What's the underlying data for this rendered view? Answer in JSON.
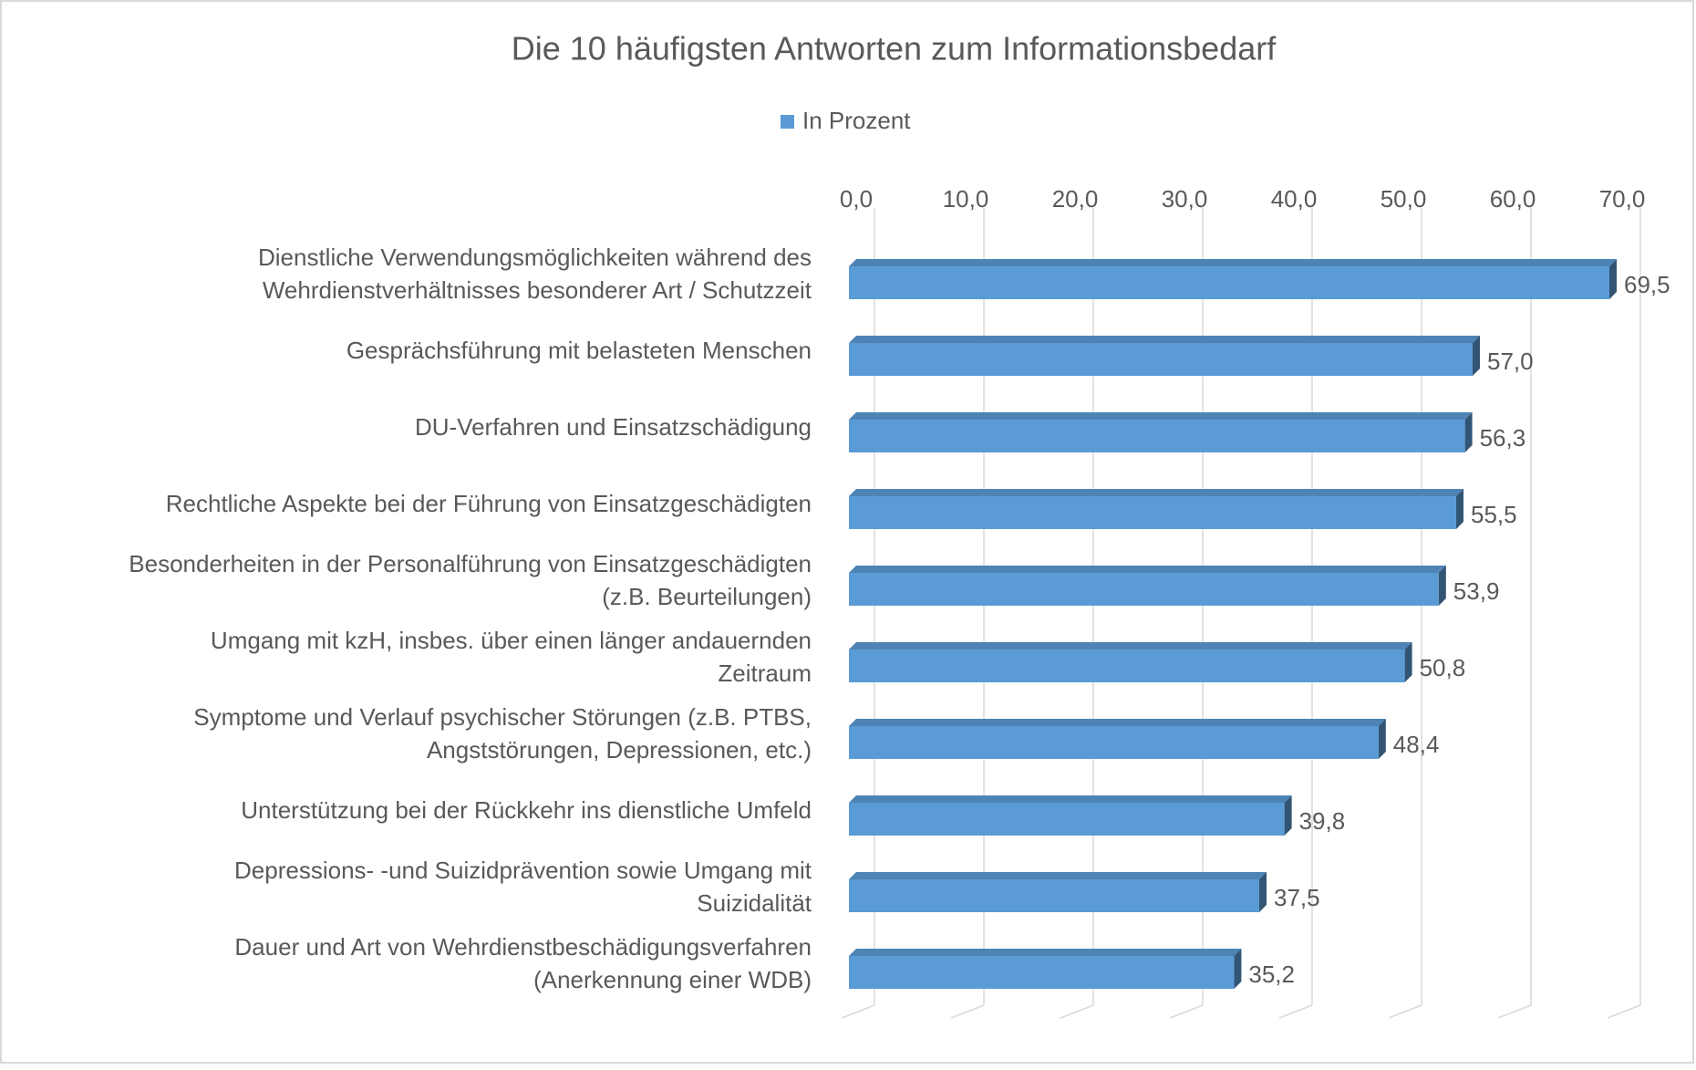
{
  "chart_data": {
    "type": "bar",
    "orientation": "horizontal",
    "title": "Die 10 häufigsten Antworten zum Informationsbedarf",
    "categories": [
      [
        "Dienstliche Verwendungsmöglichkeiten während des",
        "Wehrdienstverhältnisses besonderer Art / Schutzzeit"
      ],
      [
        "Gesprächsführung mit belasteten Menschen"
      ],
      [
        "DU-Verfahren und Einsatzschädigung"
      ],
      [
        "Rechtliche Aspekte bei der Führung von Einsatzgeschädigten"
      ],
      [
        "Besonderheiten in der Personalführung von Einsatzgeschädigten",
        "(z.B. Beurteilungen)"
      ],
      [
        "Umgang mit kzH, insbes. über einen länger andauernden",
        "Zeitraum"
      ],
      [
        "Symptome und Verlauf psychischer Störungen (z.B. PTBS,",
        "Angststörungen, Depressionen, etc.)"
      ],
      [
        "Unterstützung bei der Rückkehr ins dienstliche Umfeld"
      ],
      [
        "Depressions- -und Suizidprävention sowie Umgang mit",
        "Suizidalität"
      ],
      [
        "Dauer und Art von Wehrdienstbeschädigungsverfahren",
        "(Anerkennung einer WDB)"
      ]
    ],
    "series": [
      {
        "name": "In Prozent",
        "color": "#5b9bd5",
        "values": [
          69.5,
          57.0,
          56.3,
          55.5,
          53.9,
          50.8,
          48.4,
          39.8,
          37.5,
          35.2
        ],
        "value_labels": [
          "69,5",
          "57,0",
          "56,3",
          "55,5",
          "53,9",
          "50,8",
          "48,4",
          "39,8",
          "37,5",
          "35,2"
        ]
      }
    ],
    "xlim": [
      0,
      70
    ],
    "xticks": [
      {
        "value": 0,
        "label": "0,0"
      },
      {
        "value": 10,
        "label": "10,0"
      },
      {
        "value": 20,
        "label": "20,0"
      },
      {
        "value": 30,
        "label": "30,0"
      },
      {
        "value": 40,
        "label": "40,0"
      },
      {
        "value": 50,
        "label": "50,0"
      },
      {
        "value": 60,
        "label": "60,0"
      },
      {
        "value": 70,
        "label": "70,0"
      }
    ],
    "xaxis_position": "top",
    "grid": true,
    "legend_position": "top"
  }
}
